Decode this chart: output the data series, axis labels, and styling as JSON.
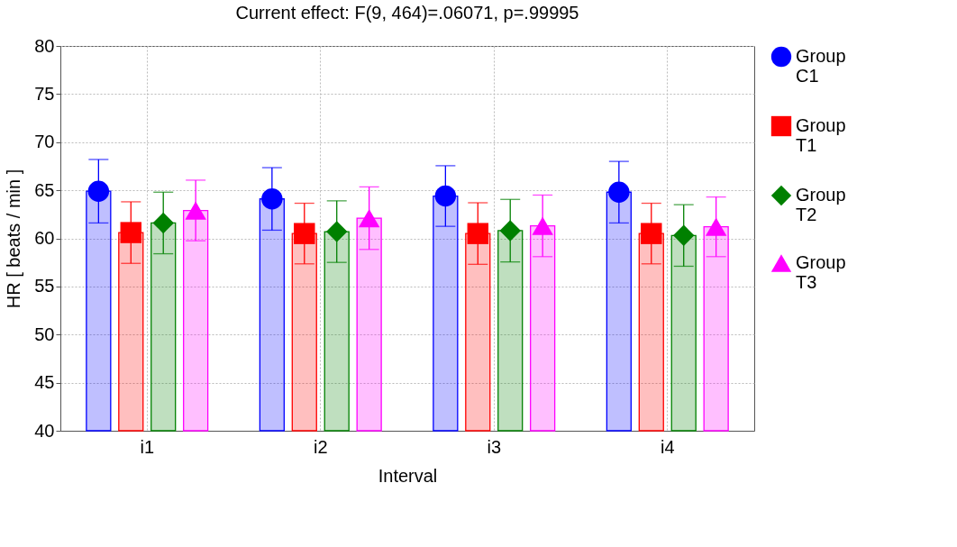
{
  "chart_data": {
    "type": "bar",
    "title": "Current effect: F(9, 464)=.06071, p=.99995",
    "xlabel": "Interval",
    "ylabel": "HR [ beats / min ]",
    "categories": [
      "i1",
      "i2",
      "i3",
      "i4"
    ],
    "series": [
      {
        "name": "Group C1",
        "color": "#0000ff",
        "values": [
          64.9,
          64.1,
          64.4,
          64.8
        ],
        "errors": [
          3.3,
          3.25,
          3.15,
          3.2
        ]
      },
      {
        "name": "Group T1",
        "color": "#ff0000",
        "values": [
          60.6,
          60.5,
          60.5,
          60.5
        ],
        "errors": [
          3.2,
          3.15,
          3.2,
          3.15
        ]
      },
      {
        "name": "Group T2",
        "color": "#008000",
        "values": [
          61.6,
          60.7,
          60.8,
          60.3
        ],
        "errors": [
          3.2,
          3.2,
          3.25,
          3.2
        ]
      },
      {
        "name": "Group T3",
        "color": "#ff00ff",
        "values": [
          62.9,
          62.1,
          61.3,
          61.2
        ],
        "errors": [
          3.15,
          3.25,
          3.2,
          3.1
        ]
      },
      {
        "type": "scatter",
        "color": "#0000ff",
        "marker": "circle",
        "x": [
          "i1",
          "i2",
          "i3",
          "i4"
        ],
        "values": [
          64.9,
          64.1,
          64.4,
          64.8
        ]
      },
      {
        "type": "scatter",
        "color": "#ff0000",
        "marker": "square",
        "x": [
          "i1",
          "i2",
          "i3",
          "i4"
        ],
        "values": [
          60.6,
          60.5,
          60.5,
          60.5
        ]
      },
      {
        "type": "scatter",
        "color": "#008000",
        "marker": "diamond",
        "x": [
          "i1",
          "i2",
          "i3",
          "i4"
        ],
        "values": [
          61.6,
          60.7,
          60.8,
          60.3
        ]
      },
      {
        "type": "scatter",
        "color": "#ff00ff",
        "marker": "triangle",
        "x": [
          "i1",
          "i2",
          "i3",
          "i4"
        ],
        "values": [
          62.9,
          62.1,
          61.3,
          61.2
        ]
      }
    ],
    "ylim": [
      40,
      80
    ],
    "yticks": [
      40,
      45,
      50,
      55,
      60,
      65,
      70,
      75,
      80
    ],
    "grid": true,
    "legend": "right"
  }
}
